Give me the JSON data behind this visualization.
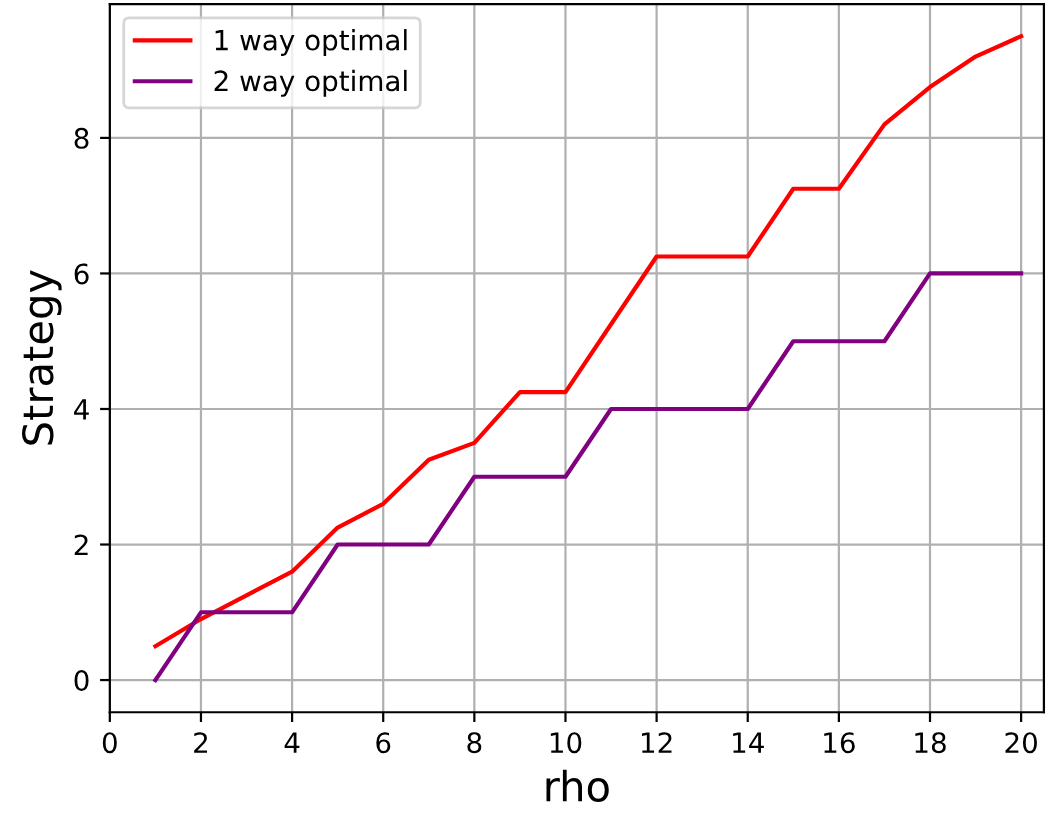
{
  "chart_data": {
    "type": "line",
    "xlabel": "rho",
    "ylabel": "Strategy",
    "x": [
      1,
      2,
      3,
      4,
      5,
      6,
      7,
      8,
      9,
      10,
      11,
      12,
      13,
      14,
      15,
      16,
      17,
      18,
      19,
      20
    ],
    "series": [
      {
        "name": "1 way optimal",
        "color": "#ff0000",
        "values": [
          0.5,
          0.9,
          1.25,
          1.6,
          2.25,
          2.6,
          3.25,
          3.5,
          4.25,
          4.25,
          5.25,
          6.25,
          6.25,
          6.25,
          7.25,
          7.25,
          8.2,
          8.75,
          9.2,
          9.5
        ]
      },
      {
        "name": "2 way optimal",
        "color": "#800080",
        "values": [
          0,
          1,
          1,
          1,
          2,
          2,
          2,
          3,
          3,
          3,
          4,
          4,
          4,
          4,
          5,
          5,
          5,
          6,
          6,
          6
        ]
      }
    ],
    "xlim": [
      0,
      20.5
    ],
    "ylim": [
      -0.475,
      9.975
    ],
    "xticks": [
      0,
      2,
      4,
      6,
      8,
      10,
      12,
      14,
      16,
      18,
      20
    ],
    "yticks": [
      0,
      2,
      4,
      6,
      8
    ],
    "grid": true,
    "legend": "top left"
  }
}
